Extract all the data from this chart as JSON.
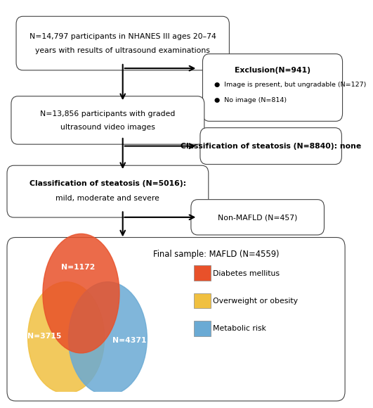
{
  "box1_text_line1": "N=14,797 participants in NHANES III ages 20–74",
  "box1_text_line2": "years with results of ultrasound examinations",
  "box_excl_title": "Exclusion(N=941)",
  "box_excl_line1": "●  Image is present, but ungradable (N=127)",
  "box_excl_line2": "●  No image (N=814)",
  "box2_text_line1": "N=13,856 participants with graded",
  "box2_text_line2": "ultrasound video images",
  "box_steat_none": "Classification of steatosis (N=8840): none",
  "box3_title": "Classification of steatosis (N=5016):",
  "box3_sub": "mild, moderate and severe",
  "box_nonmafld": "Non-MAFLD (N=457)",
  "venn_title": "Final sample: MAFLD (N=4559)",
  "venn_n1": "N=1172",
  "venn_n2": "N=3715",
  "venn_n3": "N=4371",
  "legend_dm": "Diabetes mellitus",
  "legend_ob": "Overweight or obesity",
  "legend_mr": "Metabolic risk",
  "color_dm": "#E8512A",
  "color_ob": "#F0C040",
  "color_mr": "#6aaad4",
  "bg_color": "#FFFFFF",
  "box_border": "#555555",
  "font_main": 7.8
}
